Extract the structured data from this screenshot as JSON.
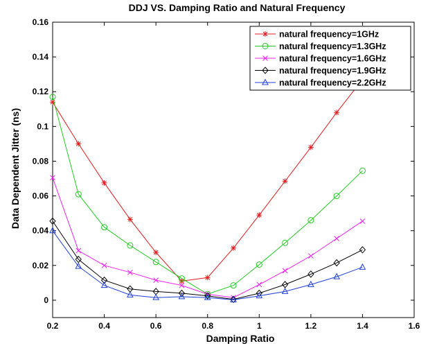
{
  "chart_data": {
    "type": "line",
    "title": "DDJ VS. Damping Ratio and Natural Frequency",
    "xlabel": "Damping Ratio",
    "ylabel": "Data Dependent Jitter (ns)",
    "xlim": [
      0.2,
      1.6
    ],
    "ylim": [
      -0.01,
      0.16
    ],
    "xticks": [
      "0.2",
      "0.4",
      "0.6",
      "0.8",
      "1",
      "1.2",
      "1.4",
      "1.6"
    ],
    "yticks": [
      "0",
      "0.02",
      "0.04",
      "0.06",
      "0.08",
      "0.1",
      "0.12",
      "0.14",
      "0.16"
    ],
    "grid": false,
    "legend_position": "top-right",
    "x": [
      0.2,
      0.3,
      0.4,
      0.5,
      0.6,
      0.7,
      0.8,
      0.9,
      1.0,
      1.1,
      1.2,
      1.3,
      1.4
    ],
    "series": [
      {
        "name": "natural frequency=1GHz",
        "color": "#e41a1c",
        "marker": "star",
        "values": [
          0.114,
          0.09,
          0.0675,
          0.0465,
          0.0275,
          0.011,
          0.013,
          0.03,
          0.049,
          0.0685,
          0.088,
          0.108,
          0.127
        ]
      },
      {
        "name": "natural frequency=1.3GHz",
        "color": "#22cc22",
        "marker": "circle",
        "values": [
          0.117,
          0.061,
          0.042,
          0.0315,
          0.022,
          0.0125,
          0.0035,
          0.0085,
          0.0205,
          0.033,
          0.046,
          0.06,
          0.0745
        ]
      },
      {
        "name": "natural frequency=1.6GHz",
        "color": "#ee22ee",
        "marker": "x",
        "values": [
          0.0705,
          0.0285,
          0.02,
          0.016,
          0.0115,
          0.0085,
          0.0035,
          0.0015,
          0.009,
          0.017,
          0.0255,
          0.0355,
          0.0455
        ]
      },
      {
        "name": "natural frequency=1.9GHz",
        "color": "#000000",
        "marker": "diamond",
        "values": [
          0.0455,
          0.0235,
          0.0115,
          0.0065,
          0.005,
          0.004,
          0.0025,
          0.0005,
          0.004,
          0.009,
          0.015,
          0.0215,
          0.029
        ]
      },
      {
        "name": "natural frequency=2.2GHz",
        "color": "#1f3fd8",
        "marker": "triangle",
        "values": [
          0.04,
          0.0195,
          0.0085,
          0.003,
          0.0015,
          0.002,
          0.0015,
          0.0002,
          0.0025,
          0.005,
          0.009,
          0.0135,
          0.019
        ]
      }
    ]
  }
}
